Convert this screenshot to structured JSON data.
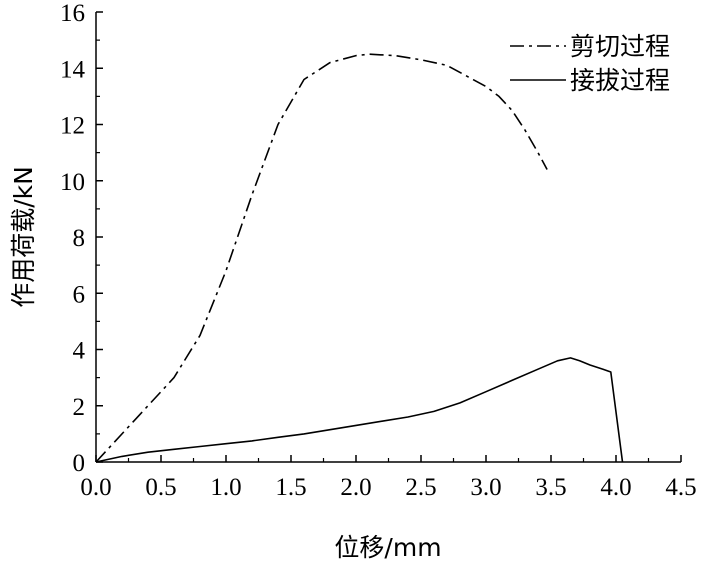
{
  "chart_data": {
    "type": "line",
    "title": "",
    "xlabel": "位移/mm",
    "ylabel": "作用荷载/kN",
    "xlim": [
      0,
      4.5
    ],
    "ylim": [
      0,
      16
    ],
    "xticks": [
      "0.0",
      "0.5",
      "1.0",
      "1.5",
      "2.0",
      "2.5",
      "3.0",
      "3.5",
      "4.0",
      "4.5"
    ],
    "yticks": [
      "0",
      "2",
      "4",
      "6",
      "8",
      "10",
      "12",
      "14",
      "16"
    ],
    "grid": false,
    "legend_position": "top-right",
    "series": [
      {
        "name": "剪切过程",
        "style": "dash-dot",
        "x": [
          0.0,
          0.3,
          0.6,
          0.8,
          1.0,
          1.2,
          1.4,
          1.6,
          1.8,
          2.0,
          2.1,
          2.3,
          2.5,
          2.7,
          2.9,
          3.0,
          3.1,
          3.2,
          3.3,
          3.4,
          3.47
        ],
        "y": [
          0.0,
          1.5,
          3.0,
          4.5,
          6.8,
          9.5,
          12.0,
          13.6,
          14.2,
          14.45,
          14.5,
          14.45,
          14.3,
          14.1,
          13.6,
          13.35,
          13.0,
          12.5,
          11.8,
          11.0,
          10.4
        ]
      },
      {
        "name": "接拔过程",
        "style": "solid",
        "x": [
          0.0,
          0.2,
          0.4,
          0.6,
          0.8,
          1.0,
          1.2,
          1.4,
          1.6,
          1.8,
          2.0,
          2.2,
          2.4,
          2.6,
          2.8,
          3.0,
          3.2,
          3.4,
          3.55,
          3.65,
          3.72,
          3.8,
          3.9,
          3.96,
          4.05
        ],
        "y": [
          0.0,
          0.2,
          0.35,
          0.45,
          0.55,
          0.65,
          0.75,
          0.88,
          1.0,
          1.15,
          1.3,
          1.45,
          1.6,
          1.8,
          2.1,
          2.5,
          2.9,
          3.3,
          3.6,
          3.7,
          3.6,
          3.45,
          3.3,
          3.2,
          0.0
        ]
      }
    ]
  }
}
